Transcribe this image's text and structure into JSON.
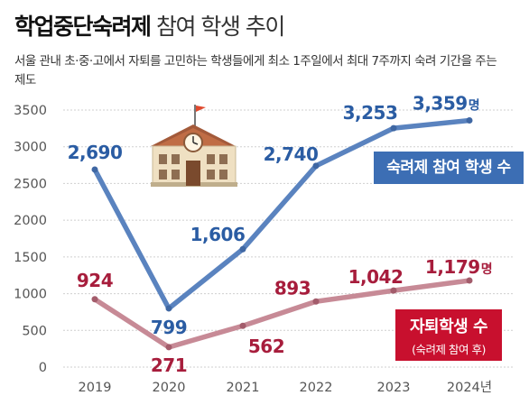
{
  "header": {
    "title_bold": "학업중단숙려제",
    "title_light": "참여 학생 추이",
    "description": "서울 관내 초·중·고에서 자퇴를 고민하는 학생들에게 최소 1주일에서 최대 7주까지 숙려 기간을 주는 제도"
  },
  "chart_data": {
    "type": "line",
    "categories": [
      "2019",
      "2020",
      "2021",
      "2022",
      "2023",
      "2024년"
    ],
    "series": [
      {
        "name": "숙려제 참여 학생 수",
        "values": [
          2690,
          799,
          1606,
          2740,
          3253,
          3359
        ],
        "labels": [
          "2,690",
          "799",
          "1,606",
          "2,740",
          "3,253",
          "3,359"
        ],
        "color": "#5a83bf"
      },
      {
        "name": "자퇴학생 수",
        "note": "(숙려제 참여 후)",
        "values": [
          924,
          271,
          562,
          893,
          1042,
          1179
        ],
        "labels": [
          "924",
          "271",
          "562",
          "893",
          "1,042",
          "1,179"
        ],
        "color": "#c78a96"
      }
    ],
    "unit_suffix": "명",
    "ylim": [
      0,
      3500
    ],
    "yticks": [
      "0",
      "500",
      "1000",
      "1500",
      "2000",
      "2500",
      "3000",
      "3500"
    ],
    "grid": true,
    "icon": "school-building-icon"
  }
}
